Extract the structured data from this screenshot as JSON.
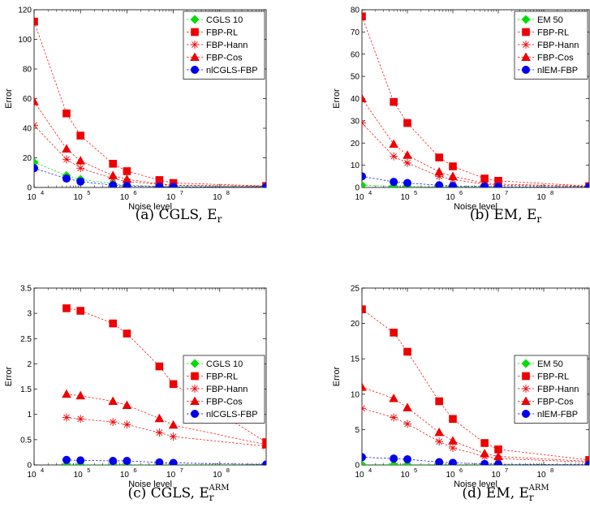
{
  "chart_data": [
    {
      "type": "line",
      "caption": "(a) CGLS, E",
      "caption_sub": "r",
      "caption_sup": "",
      "xlabel": "Noise level",
      "ylabel": "Error",
      "x_scale": "log",
      "xlim": [
        10000,
        1000000000
      ],
      "ylim": [
        0,
        120
      ],
      "yticks": [
        0,
        20,
        40,
        60,
        80,
        100,
        120
      ],
      "xticks": [
        {
          "value": 10000,
          "label": "10",
          "exp": "4"
        },
        {
          "value": 100000,
          "label": "10",
          "exp": "5"
        },
        {
          "value": 1000000,
          "label": "10",
          "exp": "6"
        },
        {
          "value": 10000000,
          "label": "10",
          "exp": "7"
        },
        {
          "value": 100000000,
          "label": "10",
          "exp": "8"
        }
      ],
      "legend_position": "top-right",
      "x": [
        10000,
        50000,
        100000,
        500000,
        1000000,
        5000000,
        10000000,
        1000000000
      ],
      "series": [
        {
          "name": "CGLS 10",
          "color": "#00dd00",
          "marker": "diamond",
          "values": [
            17,
            8,
            5.5,
            2.5,
            1.5,
            0.8,
            0.6,
            0.5
          ]
        },
        {
          "name": "FBP-RL",
          "color": "#ee0000",
          "marker": "square",
          "values": [
            112,
            50,
            35,
            16,
            11,
            5,
            3,
            1
          ]
        },
        {
          "name": "FBP-Hann",
          "color": "#ee0000",
          "marker": "star",
          "values": [
            42,
            19,
            13,
            6,
            4,
            2,
            1.5,
            0.8
          ]
        },
        {
          "name": "FBP-Cos",
          "color": "#ee0000",
          "marker": "triangle",
          "values": [
            58,
            26,
            18,
            8,
            5.5,
            2.5,
            1.5,
            0.8
          ]
        },
        {
          "name": "nlCGLS-FBP",
          "color": "#0000ee",
          "marker": "circle",
          "values": [
            13,
            6,
            4,
            1.5,
            1,
            0.5,
            0.4,
            0.3
          ]
        }
      ]
    },
    {
      "type": "line",
      "caption": "(b) EM, E",
      "caption_sub": "r",
      "caption_sup": "",
      "xlabel": "Noise level",
      "ylabel": "Error",
      "x_scale": "log",
      "xlim": [
        10000,
        1000000000
      ],
      "ylim": [
        0,
        80
      ],
      "yticks": [
        0,
        10,
        20,
        30,
        40,
        50,
        60,
        70,
        80
      ],
      "xticks": [
        {
          "value": 10000,
          "label": "10",
          "exp": "4"
        },
        {
          "value": 100000,
          "label": "10",
          "exp": "5"
        },
        {
          "value": 1000000,
          "label": "10",
          "exp": "6"
        },
        {
          "value": 10000000,
          "label": "10",
          "exp": "7"
        },
        {
          "value": 100000000,
          "label": "10",
          "exp": "8"
        }
      ],
      "legend_position": "top-right",
      "x": [
        10000,
        50000,
        100000,
        500000,
        1000000,
        5000000,
        10000000,
        1000000000
      ],
      "series": [
        {
          "name": "EM 50",
          "color": "#00dd00",
          "marker": "diamond",
          "values": [
            1,
            0.6,
            0.5,
            0.3,
            0.3,
            0.2,
            0.2,
            0.2
          ]
        },
        {
          "name": "FBP-RL",
          "color": "#ee0000",
          "marker": "square",
          "values": [
            77,
            38.5,
            29,
            13.5,
            9.5,
            4,
            3,
            0.6
          ]
        },
        {
          "name": "FBP-Hann",
          "color": "#ee0000",
          "marker": "star",
          "values": [
            29,
            14,
            11,
            5,
            3.5,
            1.5,
            1,
            0.5
          ]
        },
        {
          "name": "FBP-Cos",
          "color": "#ee0000",
          "marker": "triangle",
          "values": [
            40,
            19.5,
            14.5,
            7,
            5,
            2,
            1.5,
            0.5
          ]
        },
        {
          "name": "nlEM-FBP",
          "color": "#0000ee",
          "marker": "circle",
          "values": [
            5,
            2.5,
            2,
            1,
            0.7,
            0.4,
            0.3,
            0.2
          ]
        }
      ]
    },
    {
      "type": "line",
      "caption": "(c) CGLS, E",
      "caption_sub": "r",
      "caption_sup": "ARM",
      "xlabel": "Noise level",
      "ylabel": "Error",
      "x_scale": "log",
      "xlim": [
        10000,
        1000000000
      ],
      "ylim": [
        0,
        3.5
      ],
      "yticks": [
        0,
        0.5,
        1,
        1.5,
        2,
        2.5,
        3,
        3.5
      ],
      "xticks": [
        {
          "value": 10000,
          "label": "10",
          "exp": "4"
        },
        {
          "value": 100000,
          "label": "10",
          "exp": "5"
        },
        {
          "value": 1000000,
          "label": "10",
          "exp": "6"
        },
        {
          "value": 10000000,
          "label": "10",
          "exp": "7"
        },
        {
          "value": 100000000,
          "label": "10",
          "exp": "8"
        }
      ],
      "legend_position": "top-right",
      "x": [
        50000,
        100000,
        500000,
        1000000,
        5000000,
        10000000,
        1000000000
      ],
      "series": [
        {
          "name": "CGLS 10",
          "color": "#00dd00",
          "marker": "diamond",
          "values": [
            0.005,
            0.005,
            0.005,
            0.005,
            0.005,
            0.005,
            0.005
          ]
        },
        {
          "name": "FBP-RL",
          "color": "#ee0000",
          "marker": "square",
          "values": [
            3.1,
            3.05,
            2.8,
            2.6,
            1.95,
            1.6,
            0.45
          ]
        },
        {
          "name": "FBP-Hann",
          "color": "#ee0000",
          "marker": "star",
          "values": [
            0.94,
            0.91,
            0.85,
            0.8,
            0.64,
            0.56,
            0.37
          ]
        },
        {
          "name": "FBP-Cos",
          "color": "#ee0000",
          "marker": "triangle",
          "values": [
            1.4,
            1.37,
            1.26,
            1.18,
            0.92,
            0.79,
            0.4
          ]
        },
        {
          "name": "nlCGLS-FBP",
          "color": "#0000ee",
          "marker": "circle",
          "values": [
            0.1,
            0.09,
            0.08,
            0.08,
            0.05,
            0.04,
            0.01
          ]
        }
      ]
    },
    {
      "type": "line",
      "caption": "(d) EM, E",
      "caption_sub": "r",
      "caption_sup": "ARM",
      "xlabel": "Noise level",
      "ylabel": "Error",
      "x_scale": "log",
      "xlim": [
        10000,
        1000000000
      ],
      "ylim": [
        0,
        25
      ],
      "yticks": [
        0,
        5,
        10,
        15,
        20,
        25
      ],
      "xticks": [
        {
          "value": 10000,
          "label": "10",
          "exp": "4"
        },
        {
          "value": 100000,
          "label": "10",
          "exp": "5"
        },
        {
          "value": 1000000,
          "label": "10",
          "exp": "6"
        },
        {
          "value": 10000000,
          "label": "10",
          "exp": "7"
        },
        {
          "value": 100000000,
          "label": "10",
          "exp": "8"
        }
      ],
      "legend_position": "top-right",
      "x": [
        10000,
        50000,
        100000,
        500000,
        1000000,
        5000000,
        10000000,
        1000000000
      ],
      "series": [
        {
          "name": "EM 50",
          "color": "#00dd00",
          "marker": "diamond",
          "values": [
            0.05,
            0.05,
            0.05,
            0.05,
            0.05,
            0.05,
            0.05,
            0.05
          ]
        },
        {
          "name": "FBP-RL",
          "color": "#ee0000",
          "marker": "square",
          "values": [
            22,
            18.7,
            16,
            9,
            6.5,
            3.1,
            2.2,
            0.7
          ]
        },
        {
          "name": "FBP-Hann",
          "color": "#ee0000",
          "marker": "star",
          "values": [
            8,
            6.7,
            5.8,
            3.3,
            2.4,
            1.2,
            0.9,
            0.4
          ]
        },
        {
          "name": "FBP-Cos",
          "color": "#ee0000",
          "marker": "triangle",
          "values": [
            11,
            9.4,
            8.1,
            4.6,
            3.4,
            1.6,
            1.2,
            0.5
          ]
        },
        {
          "name": "nlEM-FBP",
          "color": "#0000ee",
          "marker": "circle",
          "values": [
            1.1,
            0.9,
            0.8,
            0.4,
            0.3,
            0.15,
            0.1,
            0.05
          ]
        }
      ]
    }
  ]
}
